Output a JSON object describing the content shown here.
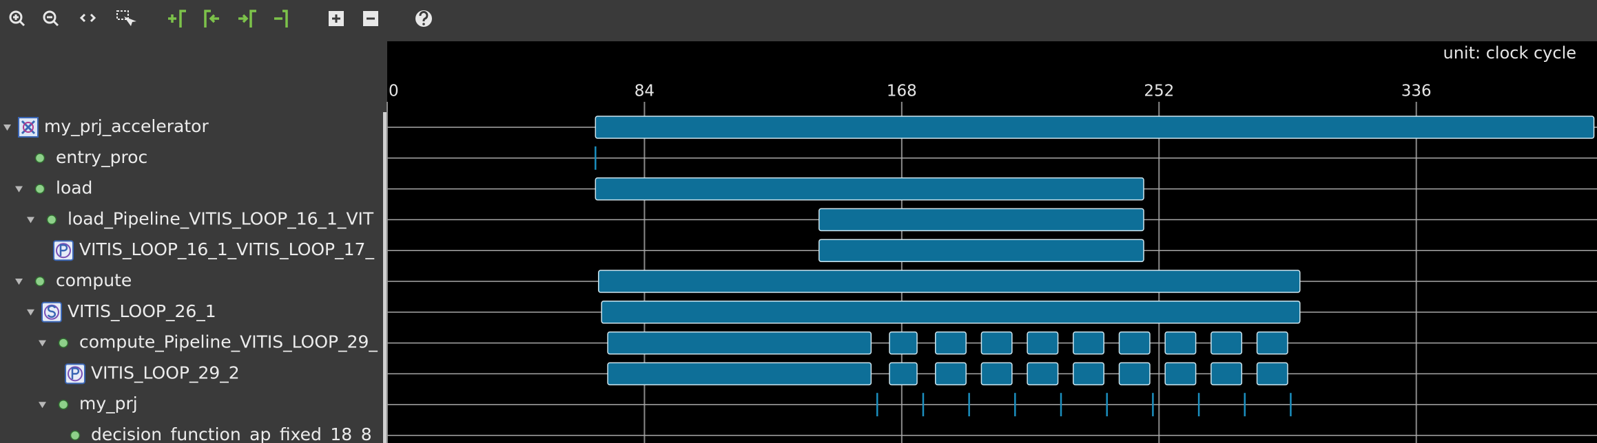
{
  "timeline": {
    "unit_label": "unit: clock cycle",
    "xlim": [
      0,
      395
    ],
    "xticks": [
      0,
      84,
      168,
      252,
      336
    ],
    "rows": [
      {
        "label": "my_prj_accelerator",
        "depth": 0,
        "expanded": true,
        "icon": "accelerator",
        "bars": [
          [
            68,
            394
          ]
        ]
      },
      {
        "label": "entry_proc",
        "depth": 1,
        "icon": "dot",
        "markers": [
          68
        ]
      },
      {
        "label": "load",
        "depth": 1,
        "expanded": true,
        "icon": "dot",
        "bars": [
          [
            68,
            247
          ]
        ]
      },
      {
        "label": "load_Pipeline_VITIS_LOOP_16_1_VIT",
        "depth": 2,
        "expanded": true,
        "icon": "dot",
        "bars": [
          [
            141,
            247
          ]
        ]
      },
      {
        "label": "VITIS_LOOP_16_1_VITIS_LOOP_17_",
        "depth": 3,
        "icon": "pipeline",
        "bars": [
          [
            141,
            247
          ]
        ]
      },
      {
        "label": "compute",
        "depth": 1,
        "expanded": true,
        "icon": "dot",
        "bars": [
          [
            69,
            298
          ]
        ]
      },
      {
        "label": "VITIS_LOOP_26_1",
        "depth": 2,
        "expanded": true,
        "icon": "sequential",
        "bars": [
          [
            70,
            298
          ]
        ]
      },
      {
        "label": "compute_Pipeline_VITIS_LOOP_29_",
        "depth": 3,
        "expanded": true,
        "icon": "dot",
        "bars": [
          [
            72,
            158
          ],
          [
            164,
            173
          ],
          [
            179,
            189
          ],
          [
            194,
            204
          ],
          [
            209,
            219
          ],
          [
            224,
            234
          ],
          [
            239,
            249
          ],
          [
            254,
            264
          ],
          [
            269,
            279
          ],
          [
            284,
            294
          ]
        ]
      },
      {
        "label": "VITIS_LOOP_29_2",
        "depth": 4,
        "icon": "pipeline",
        "bars": [
          [
            72,
            158
          ],
          [
            164,
            173
          ],
          [
            179,
            189
          ],
          [
            194,
            204
          ],
          [
            209,
            219
          ],
          [
            224,
            234
          ],
          [
            239,
            249
          ],
          [
            254,
            264
          ],
          [
            269,
            279
          ],
          [
            284,
            294
          ]
        ]
      },
      {
        "label": "my_prj",
        "depth": 3,
        "expanded": true,
        "icon": "dot",
        "markers": [
          160,
          175,
          190,
          205,
          220,
          235,
          250,
          265,
          280,
          295
        ]
      },
      {
        "label": "decision_function_ap_fixed_18_8",
        "depth": 4,
        "icon": "dot"
      }
    ]
  }
}
